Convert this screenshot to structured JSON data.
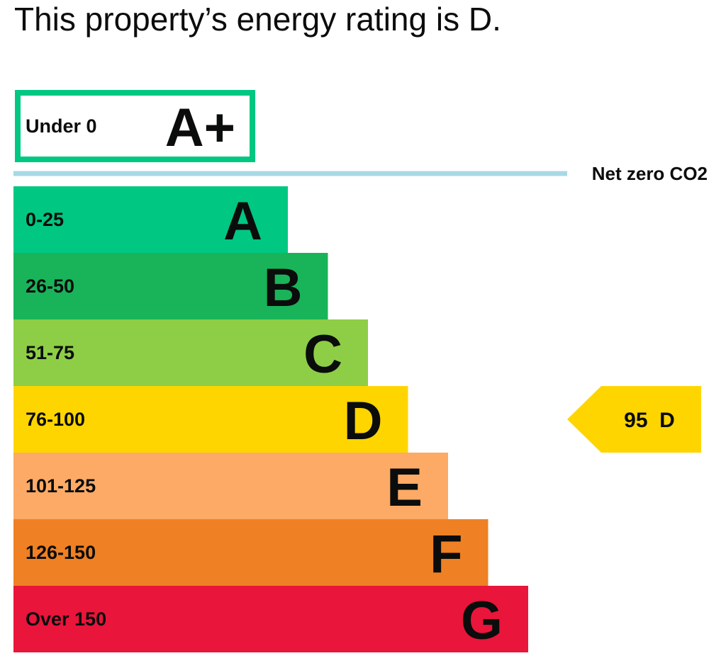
{
  "headline": "This property’s energy rating is D.",
  "chart_data": {
    "type": "bar",
    "title": "This property’s energy rating is D.",
    "top_band": {
      "range": "Under 0",
      "letter": "A+",
      "color": "#00c781",
      "style": "outlined"
    },
    "net_zero_line": {
      "label": "Net zero CO2",
      "color": "#a8d8e6"
    },
    "bands": [
      {
        "range": "0-25",
        "letter": "A",
        "color": "#00c781",
        "max": 25
      },
      {
        "range": "26-50",
        "letter": "B",
        "color": "#19b459",
        "max": 50
      },
      {
        "range": "51-75",
        "letter": "C",
        "color": "#8dce46",
        "max": 75
      },
      {
        "range": "76-100",
        "letter": "D",
        "color": "#ffd500",
        "max": 100
      },
      {
        "range": "101-125",
        "letter": "E",
        "color": "#fcaa65",
        "max": 125
      },
      {
        "range": "126-150",
        "letter": "F",
        "color": "#ef8023",
        "max": 150
      },
      {
        "range": "Over 150",
        "letter": "G",
        "color": "#e9153b",
        "max": 175
      }
    ],
    "current_rating": {
      "value": 95,
      "letter": "D",
      "label": "95  D",
      "color": "#ffd500"
    }
  }
}
